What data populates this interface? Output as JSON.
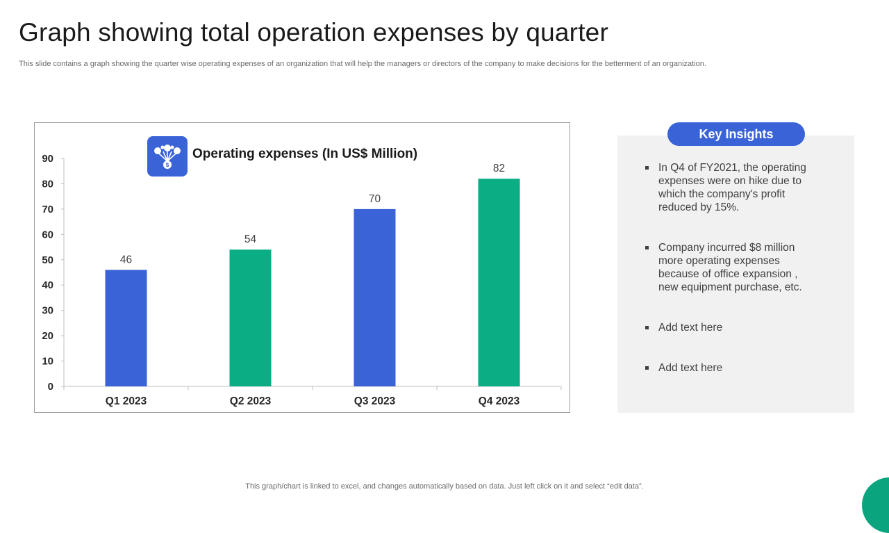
{
  "slide": {
    "title": "Graph showing total operation expenses by quarter",
    "subtitle": "This slide contains a graph showing the quarter wise operating expenses of an organization that will help the managers or directors of the company to  make decisions for the betterment of an organization.",
    "footer": "This graph/chart is linked to excel,  and changes automatically based on data. Just left click on it and select “edit data”."
  },
  "chart_data": {
    "type": "bar",
    "title": "Operating expenses (In US$ Million)",
    "categories": [
      "Q1 2023",
      "Q2 2023",
      "Q3 2023",
      "Q4 2023"
    ],
    "values": [
      46,
      54,
      70,
      82
    ],
    "bar_colors": [
      "#3a63d8",
      "#0aad84",
      "#3a63d8",
      "#0aad84"
    ],
    "ylim": [
      0,
      90
    ],
    "yticks": [
      0,
      10,
      20,
      30,
      40,
      50,
      60,
      70,
      80,
      90
    ],
    "xlabel": "",
    "ylabel": "",
    "grid": false,
    "legend": "none"
  },
  "insights": {
    "heading": "Key Insights",
    "items": [
      "In Q4 of FY2021, the operating expenses were on hike  due to which the  company's profit reduced by 15%.",
      "Company incurred  $8 million more operating expenses because of  office expansion , new equipment purchase, etc.",
      "Add text here",
      "Add text here"
    ]
  },
  "colors": {
    "accent_blue": "#3a63d8",
    "accent_green": "#0aad84",
    "panel_bg": "#f1f1f1"
  },
  "icons": {
    "chart_icon": "money-growth-icon"
  }
}
